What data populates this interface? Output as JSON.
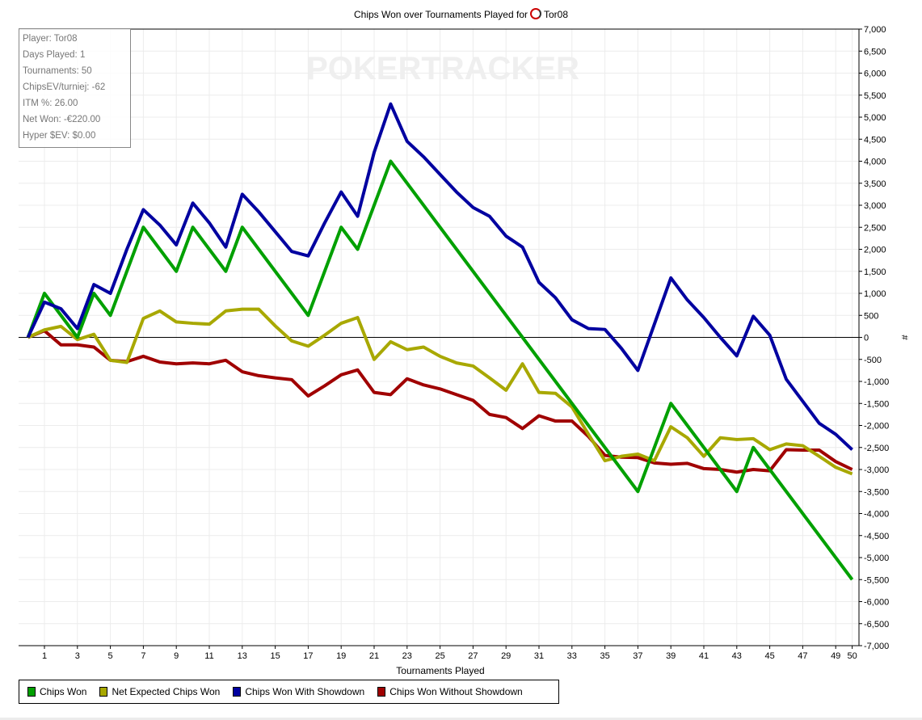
{
  "chart_data": {
    "type": "line",
    "title": "Chips Won over Tournaments Played for",
    "player": "Tor08",
    "xlabel": "Tournaments Played",
    "ylabel": "#",
    "xlim": [
      0,
      50
    ],
    "ylim": [
      -7000,
      7000
    ],
    "x_ticks": [
      1,
      3,
      5,
      7,
      9,
      11,
      13,
      15,
      17,
      19,
      21,
      23,
      25,
      27,
      29,
      31,
      33,
      35,
      37,
      39,
      41,
      43,
      45,
      47,
      49,
      50
    ],
    "y_ticks": [
      "7,000",
      "6,500",
      "6,000",
      "5,500",
      "5,000",
      "4,500",
      "4,000",
      "3,500",
      "3,000",
      "2,500",
      "2,000",
      "1,500",
      "1,000",
      "500",
      "0",
      "-500",
      "-1,000",
      "-1,500",
      "-2,000",
      "-2,500",
      "-3,000",
      "-3,500",
      "-4,000",
      "-4,500",
      "-5,000",
      "-5,500",
      "-6,000",
      "-6,500",
      "-7,000"
    ],
    "grid": true,
    "legend_placement": "bottom-left",
    "watermark": "POKERTRACKER",
    "series": [
      {
        "name": "Chips Won",
        "color": "#00a000",
        "values": [
          0,
          1000,
          500,
          0,
          1000,
          500,
          1500,
          2500,
          2000,
          1500,
          2500,
          2000,
          1500,
          2500,
          2000,
          1500,
          1000,
          500,
          1500,
          2500,
          2000,
          3000,
          4000,
          3500,
          3000,
          2500,
          2000,
          1500,
          1000,
          500,
          0,
          -500,
          -1000,
          -1500,
          -2000,
          -2500,
          -3000,
          -3500,
          -2500,
          -1500,
          -2000,
          -2500,
          -3000,
          -3500,
          -2500,
          -3000,
          -3500,
          -4000,
          -4500,
          -5000,
          -5500
        ]
      },
      {
        "name": "Net Expected Chips Won",
        "color": "#a8a800",
        "values": [
          0,
          170,
          250,
          -50,
          70,
          -520,
          -570,
          430,
          600,
          350,
          320,
          300,
          600,
          640,
          640,
          260,
          -80,
          -200,
          50,
          320,
          450,
          -500,
          -100,
          -280,
          -220,
          -430,
          -580,
          -650,
          -920,
          -1200,
          -600,
          -1250,
          -1270,
          -1580,
          -2200,
          -2800,
          -2700,
          -2650,
          -2800,
          -2030,
          -2280,
          -2700,
          -2280,
          -2320,
          -2300,
          -2550,
          -2420,
          -2460,
          -2700,
          -2950,
          -3100
        ]
      },
      {
        "name": "Chips Won With Showdown",
        "color": "#0000a0",
        "values": [
          0,
          800,
          650,
          200,
          1200,
          1000,
          2000,
          2900,
          2550,
          2100,
          3050,
          2600,
          2050,
          3250,
          2850,
          2400,
          1950,
          1850,
          2600,
          3300,
          2750,
          4200,
          5300,
          4450,
          4100,
          3700,
          3300,
          2950,
          2750,
          2300,
          2050,
          1250,
          900,
          400,
          200,
          180,
          -250,
          -750,
          300,
          1350,
          850,
          450,
          0,
          -420,
          480,
          50,
          -950,
          -1450,
          -1950,
          -2200,
          -2550
        ]
      },
      {
        "name": "Chips Won Without Showdown",
        "color": "#a00000",
        "values": [
          0,
          150,
          -170,
          -170,
          -220,
          -520,
          -550,
          -430,
          -560,
          -600,
          -580,
          -600,
          -520,
          -780,
          -870,
          -920,
          -960,
          -1330,
          -1100,
          -850,
          -740,
          -1250,
          -1300,
          -940,
          -1080,
          -1170,
          -1300,
          -1430,
          -1750,
          -1820,
          -2070,
          -1780,
          -1900,
          -1900,
          -2250,
          -2680,
          -2720,
          -2730,
          -2850,
          -2880,
          -2860,
          -2980,
          -3000,
          -3060,
          -3000,
          -3030,
          -2550,
          -2560,
          -2560,
          -2820,
          -3000
        ]
      }
    ]
  },
  "info": {
    "lines": [
      "Player: Tor08",
      "Days Played: 1",
      "Tournaments: 50",
      "ChipsEV/turniej: -62",
      "ITM %: 26.00",
      "Net Won: -€220.00",
      "Hyper $EV: $0.00"
    ]
  }
}
